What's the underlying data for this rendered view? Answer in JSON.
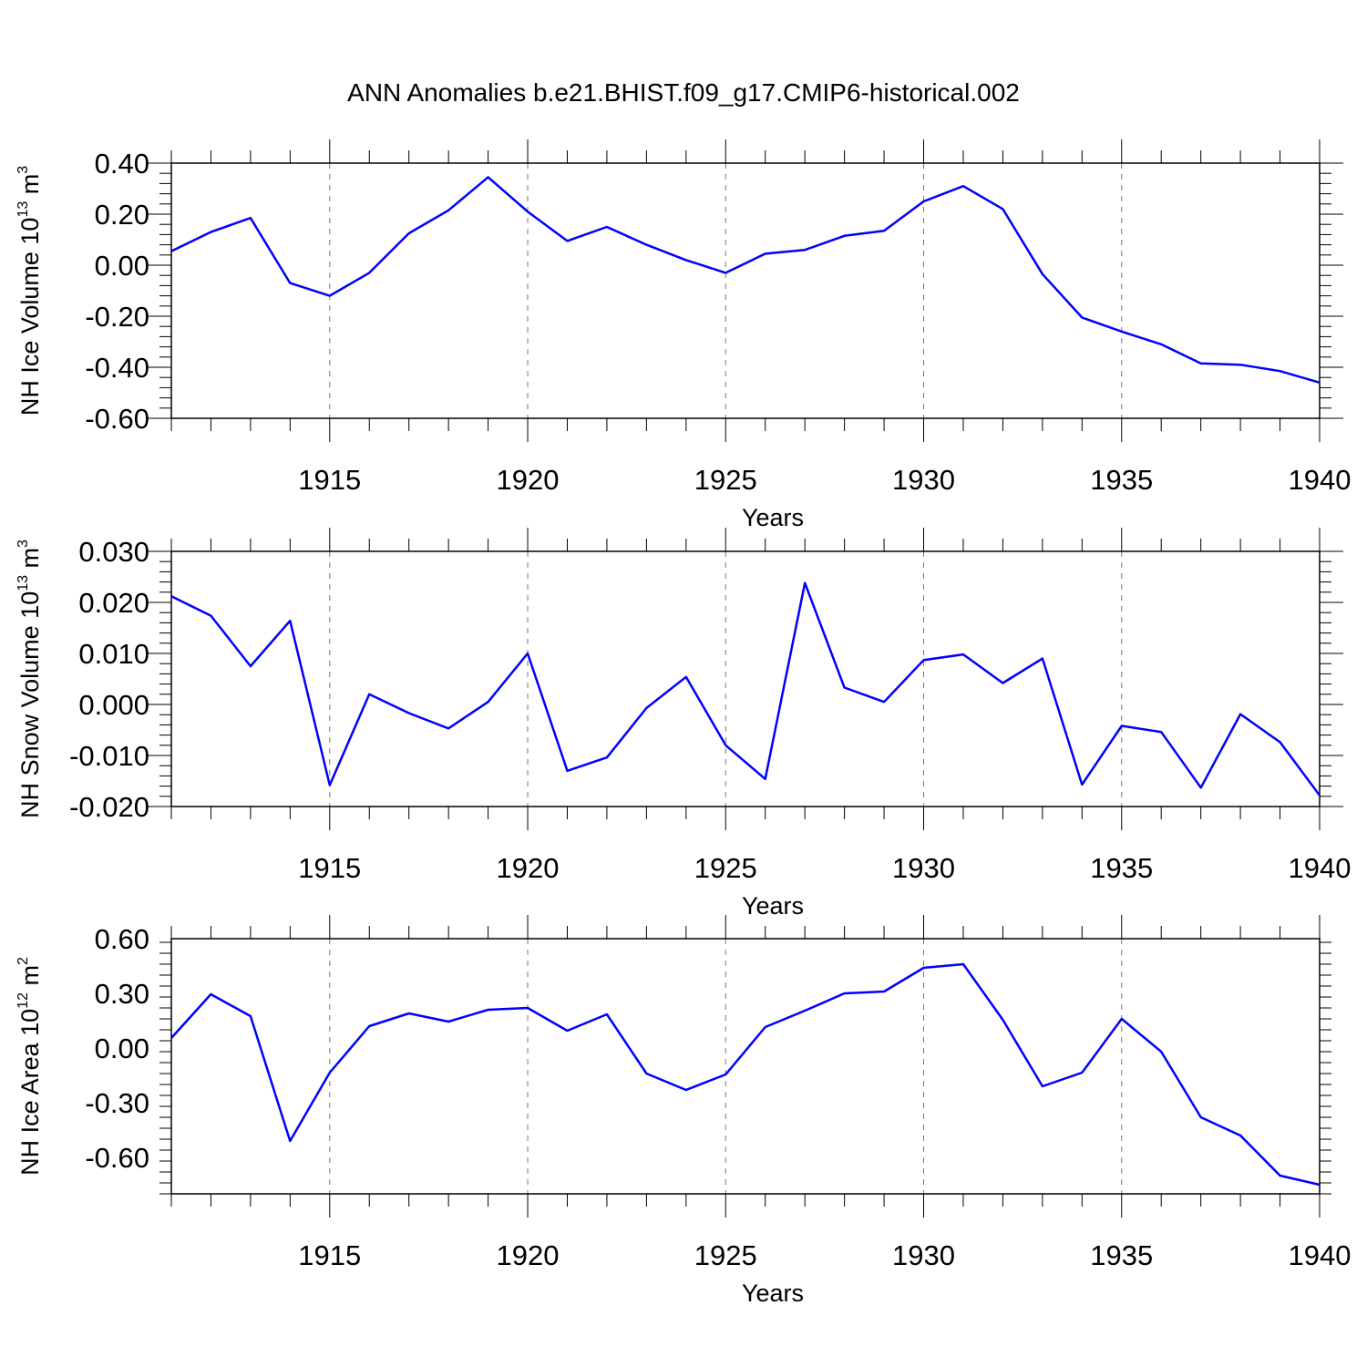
{
  "title": "ANN Anomalies b.e21.BHIST.f09_g17.CMIP6-historical.002",
  "line_color": "#0000ff",
  "chart_data": [
    {
      "type": "line",
      "ylabel": "NH Ice Volume 10^13 m^3",
      "ylabel_base": "NH Ice Volume 10",
      "ylabel_exp": "13",
      "ylabel_unit": " m",
      "ylabel_unit_exp": "3",
      "xlabel": "Years",
      "xlim": [
        1911,
        1940
      ],
      "ylim": [
        -0.6,
        0.4
      ],
      "yticks": [
        -0.6,
        -0.4,
        -0.2,
        0.0,
        0.2,
        0.4
      ],
      "ytick_labels": [
        "-0.60",
        "-0.40",
        "-0.20",
        "0.00",
        "0.20",
        "0.40"
      ],
      "xticks": [
        1915,
        1920,
        1925,
        1930,
        1935,
        1940
      ],
      "xtick_labels": [
        "1915",
        "1920",
        "1925",
        "1930",
        "1935",
        "1940"
      ],
      "x": [
        1911,
        1912,
        1913,
        1914,
        1915,
        1916,
        1917,
        1918,
        1919,
        1920,
        1921,
        1922,
        1923,
        1924,
        1925,
        1926,
        1927,
        1928,
        1929,
        1930,
        1931,
        1932,
        1933,
        1934,
        1935,
        1936,
        1937,
        1938,
        1939,
        1940
      ],
      "y": [
        0.055,
        0.13,
        0.185,
        -0.07,
        -0.12,
        -0.03,
        0.125,
        0.215,
        0.345,
        0.21,
        0.095,
        0.15,
        0.08,
        0.02,
        -0.03,
        0.045,
        0.06,
        0.115,
        0.135,
        0.25,
        0.31,
        0.22,
        -0.035,
        -0.205,
        -0.26,
        -0.31,
        -0.385,
        -0.39,
        -0.415,
        -0.46
      ]
    },
    {
      "type": "line",
      "ylabel": "NH Snow Volume 10^13 m^3",
      "ylabel_base": "NH Snow Volume 10",
      "ylabel_exp": "13",
      "ylabel_unit": " m",
      "ylabel_unit_exp": "3",
      "xlabel": "Years",
      "xlim": [
        1911,
        1940
      ],
      "ylim": [
        -0.02,
        0.03
      ],
      "yticks": [
        -0.02,
        -0.01,
        0.0,
        0.01,
        0.02,
        0.03
      ],
      "ytick_labels": [
        "-0.020",
        "-0.010",
        "0.000",
        "0.010",
        "0.020",
        "0.030"
      ],
      "xticks": [
        1915,
        1920,
        1925,
        1930,
        1935,
        1940
      ],
      "xtick_labels": [
        "1915",
        "1920",
        "1925",
        "1930",
        "1935",
        "1940"
      ],
      "x": [
        1911,
        1912,
        1913,
        1914,
        1915,
        1916,
        1917,
        1918,
        1919,
        1920,
        1921,
        1922,
        1923,
        1924,
        1925,
        1926,
        1927,
        1928,
        1929,
        1930,
        1931,
        1932,
        1933,
        1934,
        1935,
        1936,
        1937,
        1938,
        1939,
        1940
      ],
      "y": [
        0.0212,
        0.0174,
        0.0075,
        0.0164,
        -0.0158,
        0.002,
        -0.0017,
        -0.0047,
        0.0005,
        0.01,
        -0.013,
        -0.0104,
        -0.0007,
        0.0054,
        -0.008,
        -0.0146,
        0.0238,
        0.0033,
        0.0005,
        0.0087,
        0.0098,
        0.0042,
        0.009,
        -0.0157,
        -0.0042,
        -0.0054,
        -0.0163,
        -0.0019,
        -0.0074,
        -0.0178
      ]
    },
    {
      "type": "line",
      "ylabel": "NH Ice Area 10^12 m^2",
      "ylabel_base": "NH Ice Area 10",
      "ylabel_exp": "12",
      "ylabel_unit": " m",
      "ylabel_unit_exp": "2",
      "xlabel": "Years",
      "xlim": [
        1911,
        1940
      ],
      "ylim": [
        -0.8,
        0.6
      ],
      "yticks": [
        -0.6,
        -0.3,
        0.0,
        0.3,
        0.6
      ],
      "ytick_labels": [
        "-0.60",
        "-0.30",
        "0.00",
        "0.30",
        "0.60"
      ],
      "xticks": [
        1915,
        1920,
        1925,
        1930,
        1935,
        1940
      ],
      "xtick_labels": [
        "1915",
        "1920",
        "1925",
        "1930",
        "1935",
        "1940"
      ],
      "x": [
        1911,
        1912,
        1913,
        1914,
        1915,
        1916,
        1917,
        1918,
        1919,
        1920,
        1921,
        1922,
        1923,
        1924,
        1925,
        1926,
        1927,
        1928,
        1929,
        1930,
        1931,
        1932,
        1933,
        1934,
        1935,
        1936,
        1937,
        1938,
        1939,
        1940
      ],
      "y": [
        0.055,
        0.295,
        0.175,
        -0.51,
        -0.135,
        0.12,
        0.19,
        0.145,
        0.21,
        0.22,
        0.095,
        0.185,
        -0.14,
        -0.23,
        -0.145,
        0.115,
        0.205,
        0.3,
        0.31,
        0.44,
        0.46,
        0.155,
        -0.21,
        -0.135,
        0.16,
        -0.02,
        -0.38,
        -0.48,
        -0.7,
        -0.75
      ]
    }
  ]
}
